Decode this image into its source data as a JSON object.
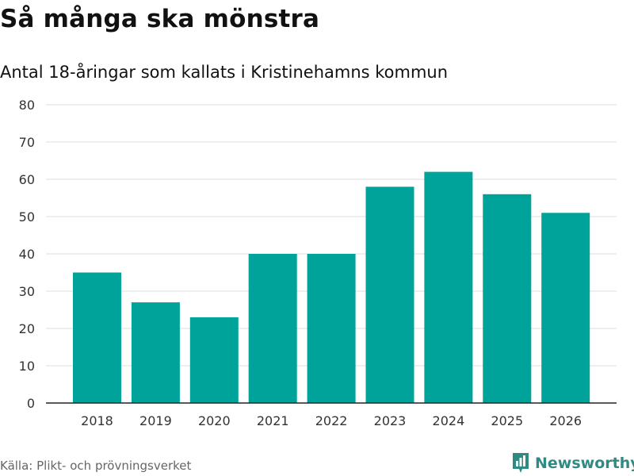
{
  "header": {
    "title": "Så många ska mönstra",
    "subtitle": "Antal 18-åringar som kallats i Kristinehamns kommun"
  },
  "footer": {
    "source": "Källa: Plikt- och prövningsverket",
    "brand": "Newsworthy"
  },
  "colors": {
    "bar": "#00a39a",
    "grid": "#dddddd",
    "axis": "#222222",
    "brand": "#2f8a84"
  },
  "chart_data": {
    "type": "bar",
    "title": "Så många ska mönstra",
    "subtitle": "Antal 18-åringar som kallats i Kristinehamns kommun",
    "xlabel": "",
    "ylabel": "",
    "categories": [
      "2018",
      "2019",
      "2020",
      "2021",
      "2022",
      "2023",
      "2024",
      "2025",
      "2026"
    ],
    "values": [
      35,
      27,
      23,
      40,
      40,
      58,
      62,
      56,
      51
    ],
    "ylim": [
      0,
      80
    ],
    "yticks": [
      0,
      10,
      20,
      30,
      40,
      50,
      60,
      70,
      80
    ],
    "grid": true,
    "legend": "none"
  }
}
